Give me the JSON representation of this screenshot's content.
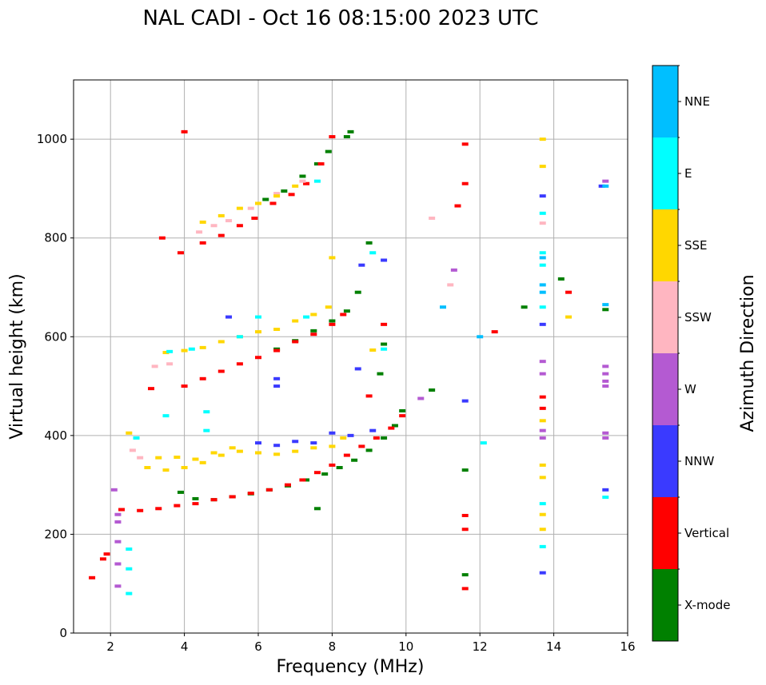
{
  "chart_data": {
    "type": "scatter",
    "title": "NAL CADI - Oct 16 08:15:00 2023 UTC",
    "xlabel": "Frequency (MHz)",
    "ylabel": "Virtual height (km)",
    "xlim": [
      1,
      16
    ],
    "ylim": [
      0,
      1120
    ],
    "xticks": [
      2,
      4,
      6,
      8,
      10,
      12,
      14,
      16
    ],
    "yticks": [
      0,
      200,
      400,
      600,
      800,
      1000
    ],
    "grid": true,
    "colorbar": {
      "title": "Azimuth Direction",
      "categories": [
        {
          "label": "X-mode",
          "color": "#008000"
        },
        {
          "label": "Vertical",
          "color": "#ff0000"
        },
        {
          "label": "NNW",
          "color": "#3a3aff"
        },
        {
          "label": "W",
          "color": "#b45ad2"
        },
        {
          "label": "SSW",
          "color": "#ffb6c1"
        },
        {
          "label": "SSE",
          "color": "#ffd700"
        },
        {
          "label": "E",
          "color": "#00ffff"
        },
        {
          "label": "NNE",
          "color": "#00bfff"
        }
      ]
    },
    "series": [
      {
        "name": "X-mode",
        "color": "#008000",
        "points": [
          [
            3.9,
            285
          ],
          [
            4.3,
            272
          ],
          [
            4.8,
            270
          ],
          [
            5.3,
            276
          ],
          [
            5.8,
            282
          ],
          [
            6.3,
            290
          ],
          [
            6.8,
            298
          ],
          [
            7.3,
            310
          ],
          [
            7.8,
            322
          ],
          [
            8.2,
            335
          ],
          [
            8.6,
            350
          ],
          [
            9.0,
            370
          ],
          [
            9.4,
            395
          ],
          [
            9.7,
            420
          ],
          [
            9.9,
            450
          ],
          [
            6.5,
            575
          ],
          [
            7.0,
            592
          ],
          [
            7.5,
            612
          ],
          [
            8.0,
            632
          ],
          [
            8.4,
            652
          ],
          [
            8.7,
            690
          ],
          [
            9.0,
            790
          ],
          [
            6.2,
            878
          ],
          [
            6.7,
            895
          ],
          [
            7.2,
            925
          ],
          [
            7.6,
            950
          ],
          [
            7.9,
            975
          ],
          [
            8.4,
            1005
          ],
          [
            8.5,
            1015
          ],
          [
            9.3,
            525
          ],
          [
            9.4,
            585
          ],
          [
            13.2,
            660
          ],
          [
            14.2,
            717
          ],
          [
            15.4,
            655
          ],
          [
            11.6,
            330
          ],
          [
            11.6,
            118
          ],
          [
            7.6,
            252
          ],
          [
            10.7,
            492
          ]
        ]
      },
      {
        "name": "Vertical",
        "color": "#ff0000",
        "points": [
          [
            2.3,
            250
          ],
          [
            2.8,
            248
          ],
          [
            3.3,
            252
          ],
          [
            3.8,
            258
          ],
          [
            4.3,
            262
          ],
          [
            4.8,
            270
          ],
          [
            5.3,
            276
          ],
          [
            5.8,
            283
          ],
          [
            6.3,
            290
          ],
          [
            6.8,
            300
          ],
          [
            7.2,
            310
          ],
          [
            7.6,
            325
          ],
          [
            8.0,
            340
          ],
          [
            8.4,
            360
          ],
          [
            8.8,
            378
          ],
          [
            9.2,
            395
          ],
          [
            9.6,
            415
          ],
          [
            9.9,
            440
          ],
          [
            3.4,
            800
          ],
          [
            3.9,
            770
          ],
          [
            4.5,
            790
          ],
          [
            5.0,
            805
          ],
          [
            5.5,
            825
          ],
          [
            5.9,
            840
          ],
          [
            6.4,
            870
          ],
          [
            6.9,
            888
          ],
          [
            7.3,
            910
          ],
          [
            7.7,
            950
          ],
          [
            8.0,
            1005
          ],
          [
            4.0,
            500
          ],
          [
            4.5,
            515
          ],
          [
            5.0,
            530
          ],
          [
            5.5,
            545
          ],
          [
            6.0,
            558
          ],
          [
            6.5,
            572
          ],
          [
            7.0,
            590
          ],
          [
            7.5,
            605
          ],
          [
            8.0,
            625
          ],
          [
            8.3,
            645
          ],
          [
            1.5,
            112
          ],
          [
            1.8,
            150
          ],
          [
            1.9,
            160
          ],
          [
            3.1,
            495
          ],
          [
            9.0,
            480
          ],
          [
            9.4,
            625
          ],
          [
            11.6,
            990
          ],
          [
            11.6,
            910
          ],
          [
            11.6,
            238
          ],
          [
            11.6,
            210
          ],
          [
            11.6,
            90
          ],
          [
            11.4,
            865
          ],
          [
            12.4,
            610
          ],
          [
            13.7,
            478
          ],
          [
            13.7,
            455
          ],
          [
            14.4,
            690
          ],
          [
            4.0,
            1015
          ]
        ]
      },
      {
        "name": "NNW",
        "color": "#3a3aff",
        "points": [
          [
            6.0,
            385
          ],
          [
            6.5,
            380
          ],
          [
            7.0,
            388
          ],
          [
            7.5,
            385
          ],
          [
            8.0,
            405
          ],
          [
            8.5,
            400
          ],
          [
            9.1,
            410
          ],
          [
            6.5,
            515
          ],
          [
            6.5,
            500
          ],
          [
            8.8,
            745
          ],
          [
            9.4,
            755
          ],
          [
            8.7,
            535
          ],
          [
            13.7,
            885
          ],
          [
            13.7,
            625
          ],
          [
            13.7,
            122
          ],
          [
            15.4,
            290
          ],
          [
            15.3,
            905
          ],
          [
            5.2,
            640
          ],
          [
            11.6,
            470
          ]
        ]
      },
      {
        "name": "W",
        "color": "#b45ad2",
        "points": [
          [
            2.2,
            95
          ],
          [
            2.2,
            140
          ],
          [
            2.2,
            185
          ],
          [
            2.2,
            225
          ],
          [
            2.2,
            240
          ],
          [
            2.1,
            290
          ],
          [
            13.7,
            550
          ],
          [
            13.7,
            525
          ],
          [
            13.7,
            410
          ],
          [
            13.7,
            395
          ],
          [
            15.4,
            540
          ],
          [
            15.4,
            525
          ],
          [
            15.4,
            510
          ],
          [
            15.4,
            500
          ],
          [
            15.4,
            405
          ],
          [
            15.4,
            395
          ],
          [
            15.4,
            915
          ],
          [
            10.4,
            475
          ],
          [
            11.3,
            735
          ]
        ]
      },
      {
        "name": "SSW",
        "color": "#ffb6c1",
        "points": [
          [
            3.2,
            540
          ],
          [
            3.6,
            545
          ],
          [
            4.4,
            812
          ],
          [
            4.8,
            825
          ],
          [
            5.2,
            835
          ],
          [
            5.8,
            860
          ],
          [
            6.5,
            890
          ],
          [
            7.2,
            915
          ],
          [
            2.8,
            355
          ],
          [
            2.6,
            370
          ],
          [
            10.7,
            840
          ],
          [
            11.2,
            705
          ],
          [
            13.7,
            830
          ]
        ]
      },
      {
        "name": "SSE",
        "color": "#ffd700",
        "points": [
          [
            3.0,
            335
          ],
          [
            3.5,
            330
          ],
          [
            4.0,
            335
          ],
          [
            4.5,
            345
          ],
          [
            5.0,
            360
          ],
          [
            5.5,
            368
          ],
          [
            6.0,
            365
          ],
          [
            6.5,
            362
          ],
          [
            7.0,
            368
          ],
          [
            7.5,
            375
          ],
          [
            8.0,
            378
          ],
          [
            8.3,
            395
          ],
          [
            3.3,
            355
          ],
          [
            3.8,
            356
          ],
          [
            4.3,
            352
          ],
          [
            4.8,
            365
          ],
          [
            5.3,
            375
          ],
          [
            2.5,
            405
          ],
          [
            3.5,
            568
          ],
          [
            4.0,
            572
          ],
          [
            4.5,
            578
          ],
          [
            5.0,
            590
          ],
          [
            5.5,
            600
          ],
          [
            6.0,
            610
          ],
          [
            6.5,
            615
          ],
          [
            7.0,
            632
          ],
          [
            7.5,
            645
          ],
          [
            7.9,
            660
          ],
          [
            4.5,
            832
          ],
          [
            5.0,
            845
          ],
          [
            5.5,
            860
          ],
          [
            6.0,
            870
          ],
          [
            6.5,
            885
          ],
          [
            7.0,
            905
          ],
          [
            13.7,
            1000
          ],
          [
            13.7,
            945
          ],
          [
            13.7,
            430
          ],
          [
            13.7,
            340
          ],
          [
            13.7,
            315
          ],
          [
            13.7,
            240
          ],
          [
            13.7,
            210
          ],
          [
            14.4,
            640
          ],
          [
            9.1,
            573
          ],
          [
            8.0,
            760
          ]
        ]
      },
      {
        "name": "E",
        "color": "#00ffff",
        "points": [
          [
            2.5,
            80
          ],
          [
            2.5,
            130
          ],
          [
            2.5,
            170
          ],
          [
            2.7,
            395
          ],
          [
            3.5,
            440
          ],
          [
            4.6,
            448
          ],
          [
            4.6,
            410
          ],
          [
            3.6,
            570
          ],
          [
            4.2,
            575
          ],
          [
            5.5,
            600
          ],
          [
            6.0,
            640
          ],
          [
            7.3,
            640
          ],
          [
            13.7,
            770
          ],
          [
            13.7,
            745
          ],
          [
            13.7,
            660
          ],
          [
            13.7,
            850
          ],
          [
            13.7,
            262
          ],
          [
            13.7,
            175
          ],
          [
            15.4,
            275
          ],
          [
            12.1,
            385
          ],
          [
            7.6,
            915
          ],
          [
            9.1,
            770
          ],
          [
            9.4,
            575
          ]
        ]
      },
      {
        "name": "NNE",
        "color": "#00bfff",
        "points": [
          [
            13.7,
            760
          ],
          [
            13.7,
            705
          ],
          [
            13.7,
            690
          ],
          [
            15.4,
            665
          ],
          [
            15.4,
            905
          ],
          [
            11.0,
            660
          ],
          [
            12.0,
            600
          ]
        ]
      }
    ]
  }
}
